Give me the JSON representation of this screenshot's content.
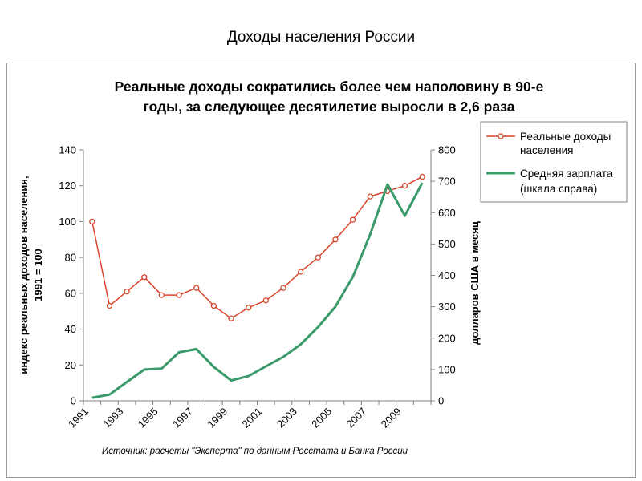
{
  "page": {
    "title": "Доходы населения России"
  },
  "chart_data": {
    "type": "line",
    "title_lines": [
      "Реальные доходы сократились более чем наполовину в 90-е",
      "годы, за следующее десятилетие выросли в 2,6 раза"
    ],
    "ylabel_left_lines": [
      "индекс реальных доходов населения,",
      "1991 = 100"
    ],
    "ylabel_right": "долларов США в месяц",
    "source": "Источник: расчеты \"Эксперта\" по данным Росстата и Банка России",
    "x_tick_labels": [
      "1991",
      "1993",
      "1995",
      "1997",
      "1999",
      "2001",
      "2003",
      "2005",
      "2007",
      "2009"
    ],
    "ylim_left": [
      0,
      140
    ],
    "ylim_right": [
      0,
      800
    ],
    "y_ticks_left": [
      "0",
      "20",
      "40",
      "60",
      "80",
      "100",
      "120",
      "140"
    ],
    "y_ticks_right": [
      "0",
      "100",
      "200",
      "300",
      "400",
      "500",
      "600",
      "700",
      "800"
    ],
    "grid": false,
    "legend_position": "top-right",
    "series": [
      {
        "name": "Реальные доходы населения",
        "name_lines": [
          "Реальные доходы",
          "населения"
        ],
        "axis": "left",
        "color": "#d9442a",
        "marker": "circle",
        "x": [
          1991,
          1992,
          1993,
          1994,
          1995,
          1996,
          1997,
          1998,
          1999,
          2000,
          2001,
          2002,
          2003,
          2004,
          2005,
          2006,
          2007,
          2008,
          2009,
          2010
        ],
        "values": [
          100,
          53,
          61,
          69,
          59,
          59,
          63,
          53,
          46,
          52,
          56,
          63,
          72,
          80,
          90,
          101,
          114,
          117,
          120,
          125
        ]
      },
      {
        "name": "Средняя зарплата (шкала справа)",
        "name_lines": [
          "Средняя зарплата",
          "(шкала справа)"
        ],
        "axis": "right",
        "color": "#3a9a6a",
        "marker": "none",
        "x": [
          1991,
          1992,
          1993,
          1994,
          1995,
          1996,
          1997,
          1998,
          1999,
          2000,
          2001,
          2002,
          2003,
          2004,
          2005,
          2006,
          2007,
          2008,
          2009,
          2010
        ],
        "values": [
          10,
          20,
          60,
          100,
          103,
          155,
          165,
          108,
          65,
          79,
          110,
          140,
          180,
          235,
          300,
          395,
          530,
          690,
          590,
          695
        ]
      }
    ]
  }
}
